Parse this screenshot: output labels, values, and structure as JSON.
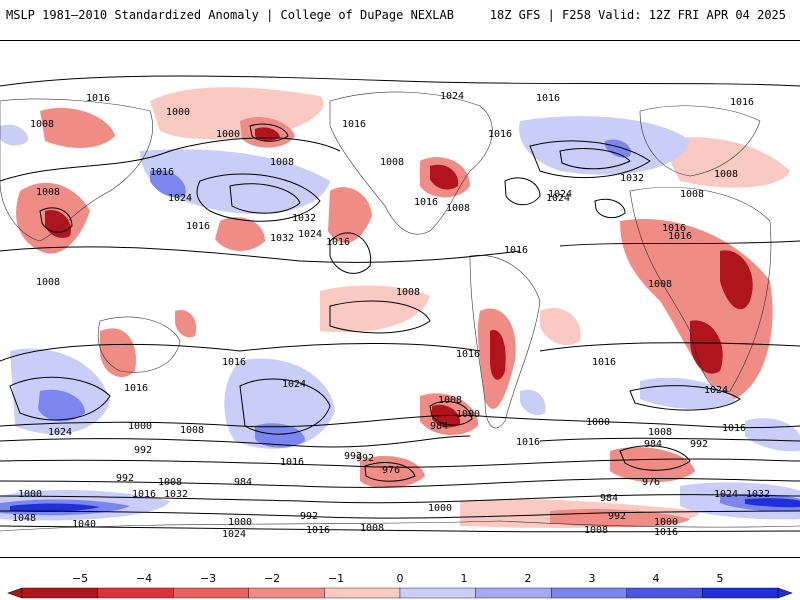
{
  "header": {
    "title_left": "MSLP 1981–2010 Standardized Anomaly | College of DuPage NEXLAB",
    "title_right": "18Z GFS | F258 Valid: 12Z FRI APR 04 2025"
  },
  "colors": {
    "strong_negative": "#b0141d",
    "negative": "#f08c86",
    "weak_negative": "#f9c9c2",
    "weak_positive": "#c9cdf7",
    "positive": "#7c86ef",
    "strong_positive": "#1f2fd9",
    "contour": "#000000"
  },
  "colorbar": {
    "ticks": [
      "−5",
      "−4",
      "−3",
      "−2",
      "−1",
      "0",
      "1",
      "2",
      "3",
      "4",
      "5"
    ],
    "range": [
      -5,
      5
    ]
  },
  "isobar_labels": [
    "1016",
    "1008",
    "1000",
    "1016",
    "1008",
    "1024",
    "1032",
    "1016",
    "1000",
    "1008",
    "1016",
    "1024",
    "1016",
    "1008",
    "1016",
    "1024",
    "1016",
    "1008",
    "1024",
    "1016",
    "1016",
    "1032",
    "1008",
    "1008",
    "1008",
    "1016",
    "1008",
    "1016",
    "1016",
    "1016",
    "1016",
    "1024",
    "1000",
    "1008",
    "992",
    "1024",
    "1016",
    "992",
    "1016",
    "1008",
    "1000",
    "984",
    "1016",
    "1008",
    "1000",
    "984",
    "992",
    "976",
    "1024",
    "1016",
    "1032",
    "1000",
    "992",
    "1016",
    "1032",
    "984",
    "992",
    "1008",
    "1000",
    "1048",
    "1040",
    "1024",
    "1000",
    "992",
    "1016",
    "1008",
    "1008",
    "992",
    "1000",
    "1016",
    "976",
    "984",
    "1024",
    "1032",
    "1024",
    "1016",
    "1008"
  ]
}
